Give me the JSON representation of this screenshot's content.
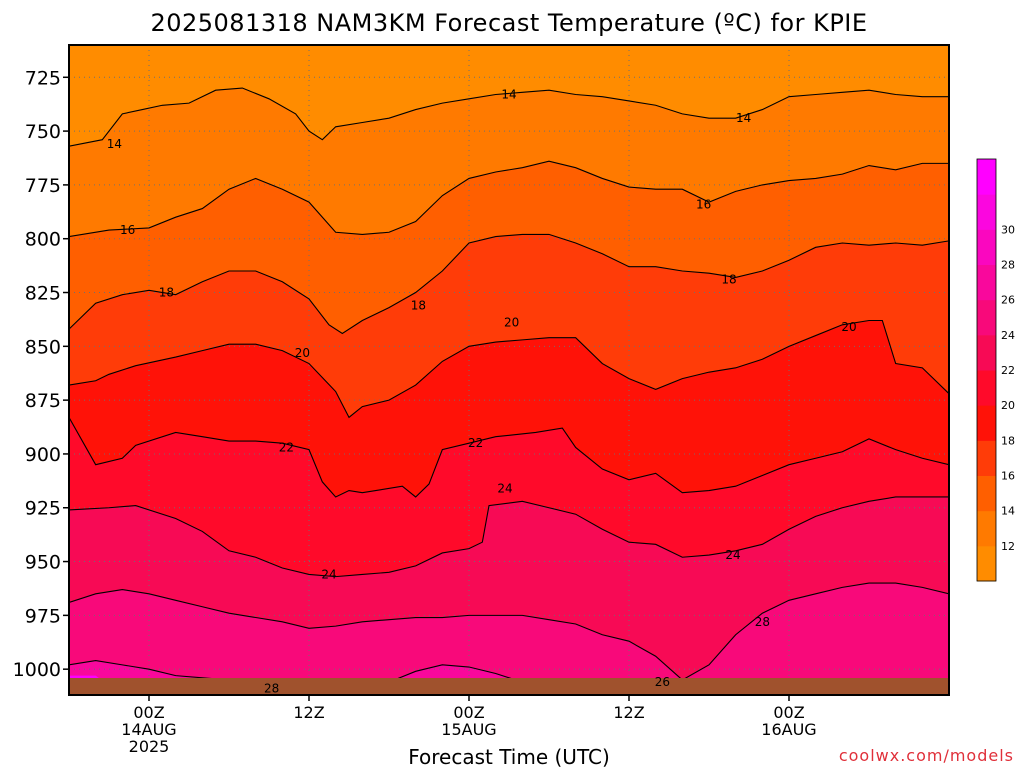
{
  "chart_data": {
    "type": "contour",
    "title": "2025081318 NAM3KM Forecast Temperature (ºC) for KPIE",
    "xlabel": "Forecast Time (UTC)",
    "ylabel": "",
    "x_ticks": [
      {
        "lines": [
          "00Z",
          "14AUG",
          "2025"
        ]
      },
      {
        "lines": [
          "12Z"
        ]
      },
      {
        "lines": [
          "00Z",
          "15AUG"
        ]
      },
      {
        "lines": [
          "12Z"
        ]
      },
      {
        "lines": [
          "00Z",
          "16AUG"
        ]
      }
    ],
    "x_tick_hours": [
      6,
      18,
      30,
      42,
      54
    ],
    "xlim_hours": [
      0,
      66
    ],
    "y_ticks": [
      725,
      750,
      775,
      800,
      825,
      850,
      875,
      900,
      925,
      950,
      975,
      1000
    ],
    "ylim_hPa": [
      710,
      1012
    ],
    "y_inverted": true,
    "grid": "dotted",
    "colorbar": {
      "labels": [
        12,
        14,
        16,
        18,
        20,
        22,
        24,
        26,
        28,
        30
      ],
      "colors": [
        "#ff8c00",
        "#ff7a00",
        "#ff5f00",
        "#ff3c08",
        "#ff1208",
        "#ff0a2a",
        "#f70a55",
        "#f8097a",
        "#f9089c",
        "#fa07bf",
        "#fb06df",
        "#ff00ff"
      ]
    },
    "contour_levels": [
      14,
      16,
      18,
      20,
      22,
      24,
      26,
      28
    ],
    "contour_labels": [
      {
        "value": "14",
        "hour": 3.4,
        "pressure": 756
      },
      {
        "value": "14",
        "hour": 33,
        "pressure": 733
      },
      {
        "value": "14",
        "hour": 50.6,
        "pressure": 744
      },
      {
        "value": "16",
        "hour": 4.4,
        "pressure": 796
      },
      {
        "value": "16",
        "hour": 47.6,
        "pressure": 784
      },
      {
        "value": "18",
        "hour": 7.3,
        "pressure": 825
      },
      {
        "value": "18",
        "hour": 26.2,
        "pressure": 831
      },
      {
        "value": "18",
        "hour": 49.5,
        "pressure": 819
      },
      {
        "value": "20",
        "hour": 17.5,
        "pressure": 853
      },
      {
        "value": "20",
        "hour": 33.2,
        "pressure": 839
      },
      {
        "value": "20",
        "hour": 58.5,
        "pressure": 841
      },
      {
        "value": "22",
        "hour": 16.3,
        "pressure": 897
      },
      {
        "value": "22",
        "hour": 30.5,
        "pressure": 895
      },
      {
        "value": "24",
        "hour": 32.7,
        "pressure": 916
      },
      {
        "value": "24",
        "hour": 19.5,
        "pressure": 956
      },
      {
        "value": "24",
        "hour": 49.8,
        "pressure": 947
      },
      {
        "value": "26",
        "hour": 44.5,
        "pressure": 1006
      },
      {
        "value": "28",
        "hour": 15.2,
        "pressure": 1009
      },
      {
        "value": "28",
        "hour": 52,
        "pressure": 978
      }
    ],
    "contours": [
      {
        "level": 14,
        "points": [
          [
            0,
            757
          ],
          [
            2.5,
            754
          ],
          [
            4,
            742
          ],
          [
            5.5,
            740
          ],
          [
            7,
            738
          ],
          [
            9,
            737
          ],
          [
            11,
            731
          ],
          [
            13,
            730
          ],
          [
            15,
            735
          ],
          [
            17,
            742
          ],
          [
            18,
            750
          ],
          [
            19,
            754
          ],
          [
            20,
            748
          ],
          [
            22,
            746
          ],
          [
            24,
            744
          ],
          [
            26,
            740
          ],
          [
            28,
            737
          ],
          [
            30,
            735
          ],
          [
            32,
            733
          ],
          [
            34,
            732
          ],
          [
            36,
            731
          ],
          [
            38,
            733
          ],
          [
            40,
            734
          ],
          [
            42,
            736
          ],
          [
            44,
            738
          ],
          [
            46,
            742
          ],
          [
            48,
            744
          ],
          [
            50,
            744
          ],
          [
            52,
            740
          ],
          [
            54,
            734
          ],
          [
            56,
            733
          ],
          [
            58,
            732
          ],
          [
            60,
            731
          ],
          [
            62,
            733
          ],
          [
            64,
            734
          ],
          [
            66,
            734
          ]
        ]
      },
      {
        "level": 16,
        "points": [
          [
            0,
            799
          ],
          [
            3,
            796
          ],
          [
            6,
            795
          ],
          [
            8,
            790
          ],
          [
            10,
            786
          ],
          [
            12,
            777
          ],
          [
            14,
            772
          ],
          [
            16,
            777
          ],
          [
            18,
            783
          ],
          [
            20,
            797
          ],
          [
            22,
            798
          ],
          [
            24,
            797
          ],
          [
            26,
            792
          ],
          [
            28,
            780
          ],
          [
            30,
            772
          ],
          [
            32,
            769
          ],
          [
            34,
            767
          ],
          [
            36,
            764
          ],
          [
            38,
            767
          ],
          [
            40,
            772
          ],
          [
            42,
            776
          ],
          [
            44,
            777
          ],
          [
            46,
            777
          ],
          [
            48,
            783
          ],
          [
            50,
            778
          ],
          [
            52,
            775
          ],
          [
            54,
            773
          ],
          [
            56,
            772
          ],
          [
            58,
            770
          ],
          [
            60,
            766
          ],
          [
            62,
            768
          ],
          [
            64,
            765
          ],
          [
            66,
            765
          ]
        ]
      },
      {
        "level": 18,
        "points": [
          [
            0,
            842
          ],
          [
            2,
            830
          ],
          [
            4,
            826
          ],
          [
            6,
            824
          ],
          [
            8,
            826
          ],
          [
            10,
            820
          ],
          [
            12,
            815
          ],
          [
            14,
            815
          ],
          [
            16,
            820
          ],
          [
            18,
            828
          ],
          [
            19.5,
            840
          ],
          [
            20.5,
            844
          ],
          [
            22,
            838
          ],
          [
            24,
            832
          ],
          [
            26,
            825
          ],
          [
            28,
            815
          ],
          [
            30,
            802
          ],
          [
            32,
            799
          ],
          [
            34,
            798
          ],
          [
            36,
            798
          ],
          [
            38,
            802
          ],
          [
            40,
            807
          ],
          [
            42,
            813
          ],
          [
            44,
            813
          ],
          [
            46,
            815
          ],
          [
            48,
            816
          ],
          [
            50,
            818
          ],
          [
            52,
            815
          ],
          [
            54,
            810
          ],
          [
            56,
            804
          ],
          [
            58,
            802
          ],
          [
            60,
            803
          ],
          [
            62,
            802
          ],
          [
            64,
            803
          ],
          [
            66,
            801
          ]
        ]
      },
      {
        "level": 20,
        "points": [
          [
            0,
            868
          ],
          [
            2,
            866
          ],
          [
            3,
            863
          ],
          [
            5,
            859
          ],
          [
            8,
            855
          ],
          [
            10,
            852
          ],
          [
            12,
            849
          ],
          [
            14,
            849
          ],
          [
            16,
            852
          ],
          [
            18,
            858
          ],
          [
            20,
            871
          ],
          [
            21,
            883
          ],
          [
            22,
            878
          ],
          [
            24,
            875
          ],
          [
            26,
            868
          ],
          [
            28,
            857
          ],
          [
            30,
            850
          ],
          [
            32,
            848
          ],
          [
            34,
            847
          ],
          [
            36,
            846
          ],
          [
            38,
            846
          ],
          [
            40,
            858
          ],
          [
            42,
            865
          ],
          [
            44,
            870
          ],
          [
            46,
            865
          ],
          [
            48,
            862
          ],
          [
            50,
            860
          ],
          [
            52,
            856
          ],
          [
            54,
            850
          ],
          [
            56,
            845
          ],
          [
            58,
            840
          ],
          [
            60,
            838
          ],
          [
            61,
            838
          ],
          [
            62,
            858
          ],
          [
            64,
            860
          ],
          [
            66,
            872
          ]
        ]
      },
      {
        "level": 22,
        "points": [
          [
            0,
            883
          ],
          [
            2,
            905
          ],
          [
            4,
            902
          ],
          [
            5,
            896
          ],
          [
            8,
            890
          ],
          [
            10,
            892
          ],
          [
            12,
            894
          ],
          [
            14,
            894
          ],
          [
            16,
            895
          ],
          [
            18,
            898
          ],
          [
            19,
            913
          ],
          [
            20,
            920
          ],
          [
            21,
            917
          ],
          [
            22,
            918
          ],
          [
            23,
            917
          ],
          [
            25,
            915
          ],
          [
            26,
            920
          ],
          [
            27,
            914
          ],
          [
            28,
            898
          ],
          [
            30,
            895
          ],
          [
            32,
            892
          ],
          [
            35,
            890
          ],
          [
            37,
            888
          ],
          [
            38,
            897
          ],
          [
            40,
            907
          ],
          [
            42,
            912
          ],
          [
            44,
            909
          ],
          [
            46,
            918
          ],
          [
            48,
            917
          ],
          [
            50,
            915
          ],
          [
            52,
            910
          ],
          [
            54,
            905
          ],
          [
            56,
            902
          ],
          [
            58,
            899
          ],
          [
            60,
            893
          ],
          [
            62,
            898
          ],
          [
            64,
            902
          ],
          [
            66,
            905
          ]
        ]
      },
      {
        "level": 24,
        "points": [
          [
            0,
            926
          ],
          [
            3,
            925
          ],
          [
            5,
            924
          ],
          [
            8,
            930
          ],
          [
            10,
            936
          ],
          [
            12,
            945
          ],
          [
            14,
            948
          ],
          [
            16,
            953
          ],
          [
            18,
            956
          ],
          [
            20,
            957
          ],
          [
            22,
            956
          ],
          [
            24,
            955
          ],
          [
            26,
            952
          ],
          [
            28,
            946
          ],
          [
            30,
            944
          ],
          [
            31,
            941
          ],
          [
            31.5,
            924
          ],
          [
            34,
            922
          ],
          [
            36,
            925
          ],
          [
            38,
            928
          ],
          [
            40,
            935
          ],
          [
            42,
            941
          ],
          [
            44,
            942
          ],
          [
            46,
            948
          ],
          [
            48,
            947
          ],
          [
            50,
            945
          ],
          [
            52,
            942
          ],
          [
            54,
            935
          ],
          [
            56,
            929
          ],
          [
            58,
            925
          ],
          [
            60,
            922
          ],
          [
            62,
            920
          ],
          [
            64,
            920
          ],
          [
            66,
            920
          ]
        ]
      },
      {
        "level": 26,
        "points": [
          [
            0,
            969
          ],
          [
            2,
            965
          ],
          [
            4,
            963
          ],
          [
            6,
            965
          ],
          [
            8,
            968
          ],
          [
            10,
            971
          ],
          [
            12,
            974
          ],
          [
            14,
            976
          ],
          [
            16,
            978
          ],
          [
            18,
            981
          ],
          [
            20,
            980
          ],
          [
            22,
            978
          ],
          [
            24,
            977
          ],
          [
            26,
            976
          ],
          [
            28,
            976
          ],
          [
            30,
            975
          ],
          [
            32,
            975
          ],
          [
            34,
            975
          ],
          [
            36,
            977
          ],
          [
            38,
            979
          ],
          [
            40,
            984
          ],
          [
            42,
            987
          ],
          [
            44,
            994
          ],
          [
            46,
            1005
          ],
          [
            48,
            998
          ],
          [
            50,
            984
          ],
          [
            52,
            974
          ],
          [
            54,
            968
          ],
          [
            56,
            965
          ],
          [
            58,
            962
          ],
          [
            60,
            960
          ],
          [
            62,
            960
          ],
          [
            64,
            962
          ],
          [
            66,
            965
          ]
        ]
      },
      {
        "level": 28,
        "points": [
          [
            0,
            998
          ],
          [
            2,
            996
          ],
          [
            4,
            998
          ],
          [
            6,
            1000
          ],
          [
            8,
            1003
          ],
          [
            10,
            1004
          ],
          [
            12,
            1005
          ],
          [
            14,
            1007
          ],
          [
            16,
            1009
          ],
          [
            18,
            1010
          ],
          [
            20,
            1011
          ],
          [
            22,
            1008
          ],
          [
            24,
            1006
          ],
          [
            26,
            1001
          ],
          [
            28,
            998
          ],
          [
            30,
            999
          ],
          [
            32,
            1002
          ],
          [
            34,
            1006
          ],
          [
            36,
            1009
          ],
          [
            37,
            1012
          ]
        ]
      }
    ],
    "annotations": [
      "coolwx.com/models"
    ]
  }
}
